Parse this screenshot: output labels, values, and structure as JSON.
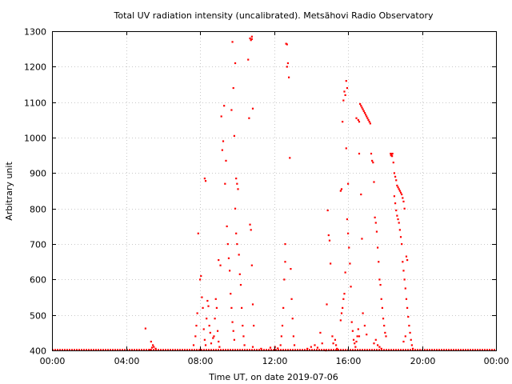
{
  "chart_data": {
    "type": "scatter",
    "title": "Total UV radiation intensity (uncalibrated). Metsähovi Radio Observatory",
    "xlabel": "Time UT, on date 2019-07-06",
    "ylabel": "Arbitrary unit",
    "xlim": [
      0,
      24
    ],
    "ylim": [
      400,
      1300
    ],
    "grid": true,
    "legend": "none",
    "x_ticks": [
      {
        "value": 0,
        "label": "00:00"
      },
      {
        "value": 4,
        "label": "04:00"
      },
      {
        "value": 8,
        "label": "08:00"
      },
      {
        "value": 12,
        "label": "12:00"
      },
      {
        "value": 16,
        "label": "16:00"
      },
      {
        "value": 20,
        "label": "20:00"
      },
      {
        "value": 24,
        "label": "00:00"
      }
    ],
    "y_ticks": [
      400,
      500,
      600,
      700,
      800,
      900,
      1000,
      1100,
      1200,
      1300
    ],
    "color": "#ff0000",
    "baseline": {
      "value": 400,
      "from": 0,
      "to": 24
    },
    "series": [
      {
        "points": [
          [
            5.05,
            462
          ],
          [
            5.35,
            425
          ],
          [
            5.45,
            415
          ],
          [
            5.5,
            410
          ],
          [
            5.6,
            405
          ],
          [
            5.4,
            408
          ],
          [
            5.3,
            402
          ],
          [
            7.65,
            415
          ],
          [
            7.75,
            440
          ],
          [
            7.8,
            470
          ],
          [
            7.85,
            505
          ],
          [
            7.9,
            730
          ],
          [
            8.0,
            600
          ],
          [
            8.05,
            610
          ],
          [
            8.1,
            550
          ],
          [
            8.15,
            520
          ],
          [
            8.2,
            460
          ],
          [
            8.25,
            430
          ],
          [
            8.3,
            415
          ],
          [
            8.25,
            885
          ],
          [
            8.3,
            878
          ],
          [
            8.35,
            490
          ],
          [
            8.4,
            540
          ],
          [
            8.45,
            525
          ],
          [
            8.5,
            470
          ],
          [
            8.55,
            450
          ],
          [
            8.6,
            420
          ],
          [
            8.7,
            435
          ],
          [
            8.75,
            440
          ],
          [
            8.8,
            490
          ],
          [
            8.85,
            545
          ],
          [
            8.9,
            520
          ],
          [
            8.95,
            455
          ],
          [
            9.0,
            425
          ],
          [
            9.05,
            410
          ],
          [
            9.0,
            655
          ],
          [
            9.1,
            640
          ],
          [
            9.15,
            1060
          ],
          [
            9.2,
            965
          ],
          [
            9.25,
            990
          ],
          [
            9.3,
            1090
          ],
          [
            9.35,
            870
          ],
          [
            9.4,
            935
          ],
          [
            9.45,
            750
          ],
          [
            9.5,
            700
          ],
          [
            9.55,
            660
          ],
          [
            9.6,
            625
          ],
          [
            9.65,
            560
          ],
          [
            9.7,
            520
          ],
          [
            9.75,
            480
          ],
          [
            9.8,
            455
          ],
          [
            9.85,
            430
          ],
          [
            9.7,
            1078
          ],
          [
            9.75,
            1270
          ],
          [
            9.8,
            1140
          ],
          [
            9.85,
            1005
          ],
          [
            9.9,
            1210
          ],
          [
            9.95,
            885
          ],
          [
            10.0,
            870
          ],
          [
            10.05,
            855
          ],
          [
            10.1,
            670
          ],
          [
            10.15,
            615
          ],
          [
            10.2,
            585
          ],
          [
            10.25,
            520
          ],
          [
            10.3,
            470
          ],
          [
            10.35,
            440
          ],
          [
            10.4,
            415
          ],
          [
            9.9,
            800
          ],
          [
            9.95,
            730
          ],
          [
            10.0,
            700
          ],
          [
            10.6,
            1220
          ],
          [
            10.65,
            1055
          ],
          [
            10.7,
            755
          ],
          [
            10.75,
            740
          ],
          [
            10.8,
            640
          ],
          [
            10.85,
            530
          ],
          [
            10.7,
            1280
          ],
          [
            10.75,
            1275
          ],
          [
            10.8,
            1285
          ],
          [
            10.8,
            1278
          ],
          [
            10.85,
            1082
          ],
          [
            10.9,
            470
          ],
          [
            10.85,
            410
          ],
          [
            11.3,
            405
          ],
          [
            11.8,
            408
          ],
          [
            12.05,
            410
          ],
          [
            12.2,
            406
          ],
          [
            12.35,
            415
          ],
          [
            12.4,
            440
          ],
          [
            12.45,
            470
          ],
          [
            12.5,
            520
          ],
          [
            12.55,
            600
          ],
          [
            12.6,
            650
          ],
          [
            12.6,
            700
          ],
          [
            12.65,
            1265
          ],
          [
            12.7,
            1263
          ],
          [
            12.75,
            1210
          ],
          [
            12.7,
            1200
          ],
          [
            12.8,
            1170
          ],
          [
            12.85,
            943
          ],
          [
            12.9,
            630
          ],
          [
            12.95,
            545
          ],
          [
            13.0,
            490
          ],
          [
            13.05,
            440
          ],
          [
            13.1,
            415
          ],
          [
            13.8,
            405
          ],
          [
            14.0,
            410
          ],
          [
            14.2,
            415
          ],
          [
            14.35,
            408
          ],
          [
            14.5,
            450
          ],
          [
            14.6,
            420
          ],
          [
            14.8,
            400
          ],
          [
            14.85,
            530
          ],
          [
            14.9,
            795
          ],
          [
            14.95,
            725
          ],
          [
            15.0,
            710
          ],
          [
            15.05,
            645
          ],
          [
            15.15,
            440
          ],
          [
            15.2,
            420
          ],
          [
            15.3,
            430
          ],
          [
            15.35,
            415
          ],
          [
            15.4,
            405
          ],
          [
            15.45,
            402
          ],
          [
            15.6,
            485
          ],
          [
            15.65,
            505
          ],
          [
            15.7,
            520
          ],
          [
            15.75,
            545
          ],
          [
            15.8,
            560
          ],
          [
            15.85,
            620
          ],
          [
            15.6,
            850
          ],
          [
            15.65,
            855
          ],
          [
            15.7,
            1045
          ],
          [
            15.75,
            1105
          ],
          [
            15.8,
            1130
          ],
          [
            15.85,
            1120
          ],
          [
            15.9,
            1160
          ],
          [
            15.95,
            1140
          ],
          [
            15.9,
            970
          ],
          [
            16.0,
            870
          ],
          [
            15.95,
            770
          ],
          [
            16.0,
            730
          ],
          [
            16.05,
            690
          ],
          [
            16.1,
            645
          ],
          [
            16.15,
            580
          ],
          [
            16.2,
            480
          ],
          [
            16.25,
            455
          ],
          [
            16.3,
            430
          ],
          [
            16.35,
            420
          ],
          [
            16.4,
            410
          ],
          [
            16.45,
            425
          ],
          [
            16.5,
            440
          ],
          [
            16.55,
            460
          ],
          [
            16.6,
            440
          ],
          [
            16.45,
            1055
          ],
          [
            16.55,
            1050
          ],
          [
            16.6,
            1045
          ],
          [
            16.65,
            1095
          ],
          [
            16.7,
            1090
          ],
          [
            16.75,
            1085
          ],
          [
            16.8,
            1080
          ],
          [
            16.85,
            1075
          ],
          [
            16.9,
            1070
          ],
          [
            16.95,
            1065
          ],
          [
            17.0,
            1060
          ],
          [
            17.05,
            1055
          ],
          [
            17.1,
            1050
          ],
          [
            17.15,
            1045
          ],
          [
            17.2,
            1040
          ],
          [
            16.6,
            955
          ],
          [
            16.7,
            840
          ],
          [
            16.75,
            715
          ],
          [
            16.8,
            505
          ],
          [
            16.9,
            470
          ],
          [
            17.0,
            445
          ],
          [
            17.25,
            955
          ],
          [
            17.3,
            935
          ],
          [
            17.35,
            930
          ],
          [
            17.4,
            875
          ],
          [
            17.45,
            775
          ],
          [
            17.5,
            760
          ],
          [
            17.55,
            735
          ],
          [
            17.6,
            690
          ],
          [
            17.65,
            650
          ],
          [
            17.7,
            600
          ],
          [
            17.75,
            585
          ],
          [
            17.8,
            545
          ],
          [
            17.85,
            520
          ],
          [
            17.9,
            490
          ],
          [
            17.95,
            470
          ],
          [
            18.0,
            450
          ],
          [
            18.05,
            440
          ],
          [
            17.4,
            420
          ],
          [
            17.5,
            430
          ],
          [
            17.6,
            415
          ],
          [
            17.7,
            410
          ],
          [
            17.8,
            405
          ],
          [
            18.3,
            955
          ],
          [
            18.32,
            950
          ],
          [
            18.35,
            953
          ],
          [
            18.38,
            948
          ],
          [
            18.4,
            955
          ],
          [
            18.45,
            930
          ],
          [
            18.5,
            900
          ],
          [
            18.55,
            890
          ],
          [
            18.6,
            880
          ],
          [
            18.65,
            865
          ],
          [
            18.7,
            860
          ],
          [
            18.75,
            855
          ],
          [
            18.8,
            850
          ],
          [
            18.85,
            845
          ],
          [
            18.9,
            840
          ],
          [
            18.95,
            830
          ],
          [
            19.0,
            820
          ],
          [
            19.05,
            800
          ],
          [
            18.5,
            835
          ],
          [
            18.55,
            815
          ],
          [
            18.6,
            795
          ],
          [
            18.65,
            780
          ],
          [
            18.7,
            770
          ],
          [
            18.75,
            760
          ],
          [
            18.8,
            740
          ],
          [
            18.85,
            720
          ],
          [
            18.9,
            700
          ],
          [
            18.95,
            650
          ],
          [
            19.0,
            625
          ],
          [
            19.05,
            600
          ],
          [
            19.1,
            575
          ],
          [
            19.15,
            545
          ],
          [
            19.2,
            520
          ],
          [
            19.25,
            495
          ],
          [
            19.3,
            470
          ],
          [
            19.35,
            450
          ],
          [
            19.4,
            430
          ],
          [
            19.45,
            415
          ],
          [
            19.5,
            405
          ],
          [
            19.15,
            665
          ],
          [
            19.2,
            655
          ],
          [
            19.1,
            440
          ],
          [
            19.0,
            425
          ]
        ]
      }
    ]
  }
}
